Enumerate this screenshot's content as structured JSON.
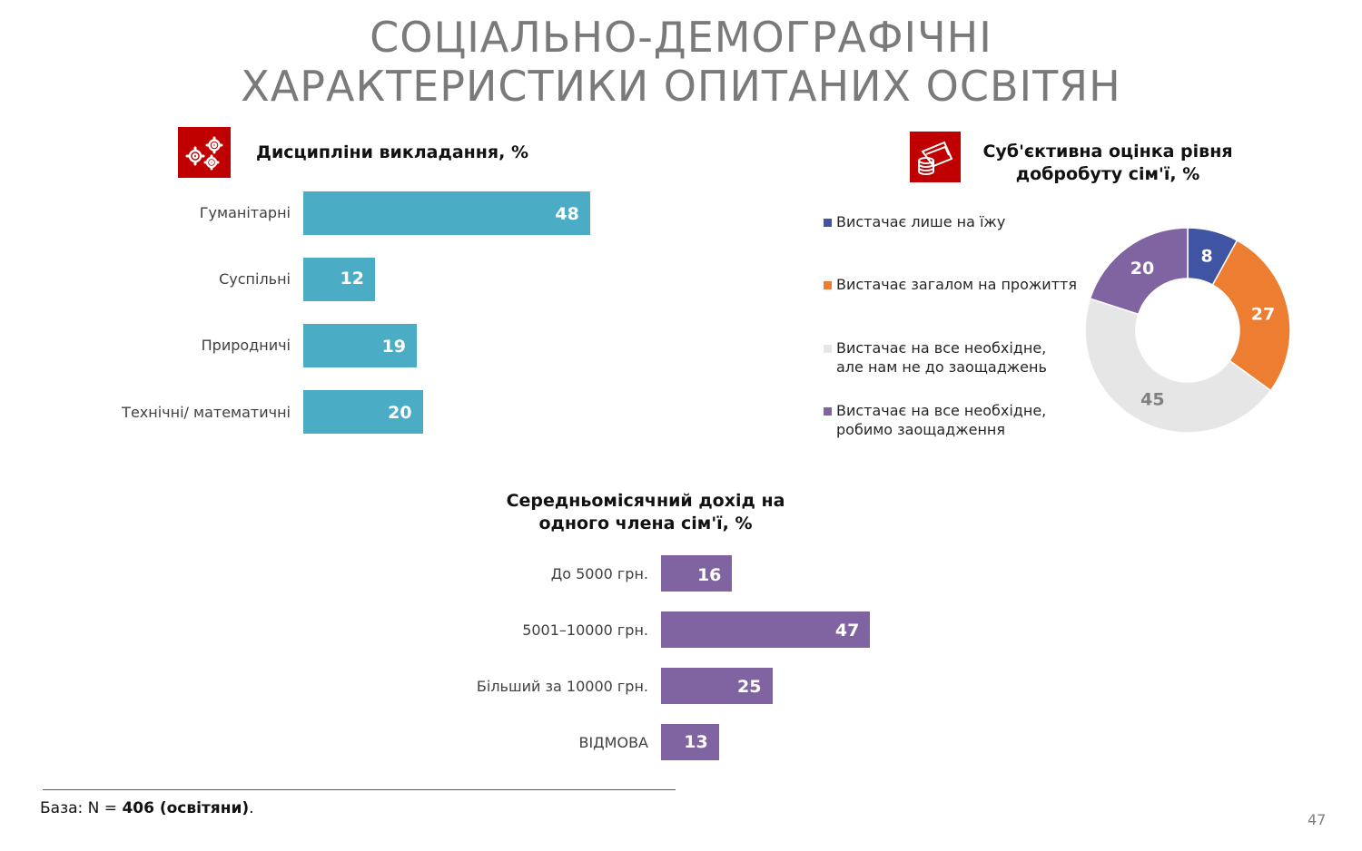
{
  "title": {
    "line1": "СОЦІАЛЬНО-ДЕМОГРАФІЧНІ",
    "line2": "ХАРАКТЕРИСТИКИ ОПИТАНИХ ОСВІТЯН"
  },
  "icons": {
    "disciplines": "gears-icon",
    "wellbeing": "money-icon"
  },
  "colors": {
    "icon_bg": "#c00000",
    "teal": "#4bacc6",
    "purple": "#8064a2",
    "blue": "#3f55a3",
    "orange": "#ed7d31",
    "gray": "#e7e6e6"
  },
  "chart_data": [
    {
      "type": "bar",
      "orientation": "horizontal",
      "title": "Дисципліни викладання, %",
      "categories": [
        "Гуманітарні",
        "Суспільні",
        "Природничі",
        "Технічні/ математичні"
      ],
      "values": [
        48,
        12,
        19,
        20
      ],
      "value_labels": [
        "48",
        "12",
        "19",
        "20"
      ],
      "color": "#4bacc6"
    },
    {
      "type": "pie",
      "variant": "donut",
      "title_line1": "Суб'єктивна оцінка рівня",
      "title_line2": "добробуту сім'ї, %",
      "legend_position": "left",
      "slices": [
        {
          "label_line1": "Вистачає лише на їжу",
          "label_line2": "",
          "value": 8,
          "value_label": "8",
          "color": "#3f55a3",
          "text_color": "#ffffff"
        },
        {
          "label_line1": "Вистачає загалом на прожиття",
          "label_line2": "",
          "value": 27,
          "value_label": "27",
          "color": "#ed7d31",
          "text_color": "#ffffff"
        },
        {
          "label_line1": "Вистачає на все необхідне,",
          "label_line2": "але нам не до заощаджень",
          "value": 45,
          "value_label": "45",
          "color": "#e7e6e6",
          "text_color": "#808080"
        },
        {
          "label_line1": "Вистачає на все необхідне,",
          "label_line2": "робимо заощадження",
          "value": 20,
          "value_label": "20",
          "color": "#8064a2",
          "text_color": "#ffffff"
        }
      ]
    },
    {
      "type": "bar",
      "orientation": "horizontal",
      "title_line1": "Середньомісячний дохід на",
      "title_line2": "одного члена сім'ї, %",
      "categories": [
        "До 5000 грн.",
        "5001–10000 грн.",
        "Більший за 10000 грн.",
        "ВІДМОВА"
      ],
      "values": [
        16,
        47,
        25,
        13
      ],
      "value_labels": [
        "16",
        "47",
        "25",
        "13"
      ],
      "color": "#8064a2"
    }
  ],
  "footnote": {
    "prefix": "База: N = ",
    "bold": "406 (освітяни)",
    "suffix": "."
  },
  "page_number": "47"
}
